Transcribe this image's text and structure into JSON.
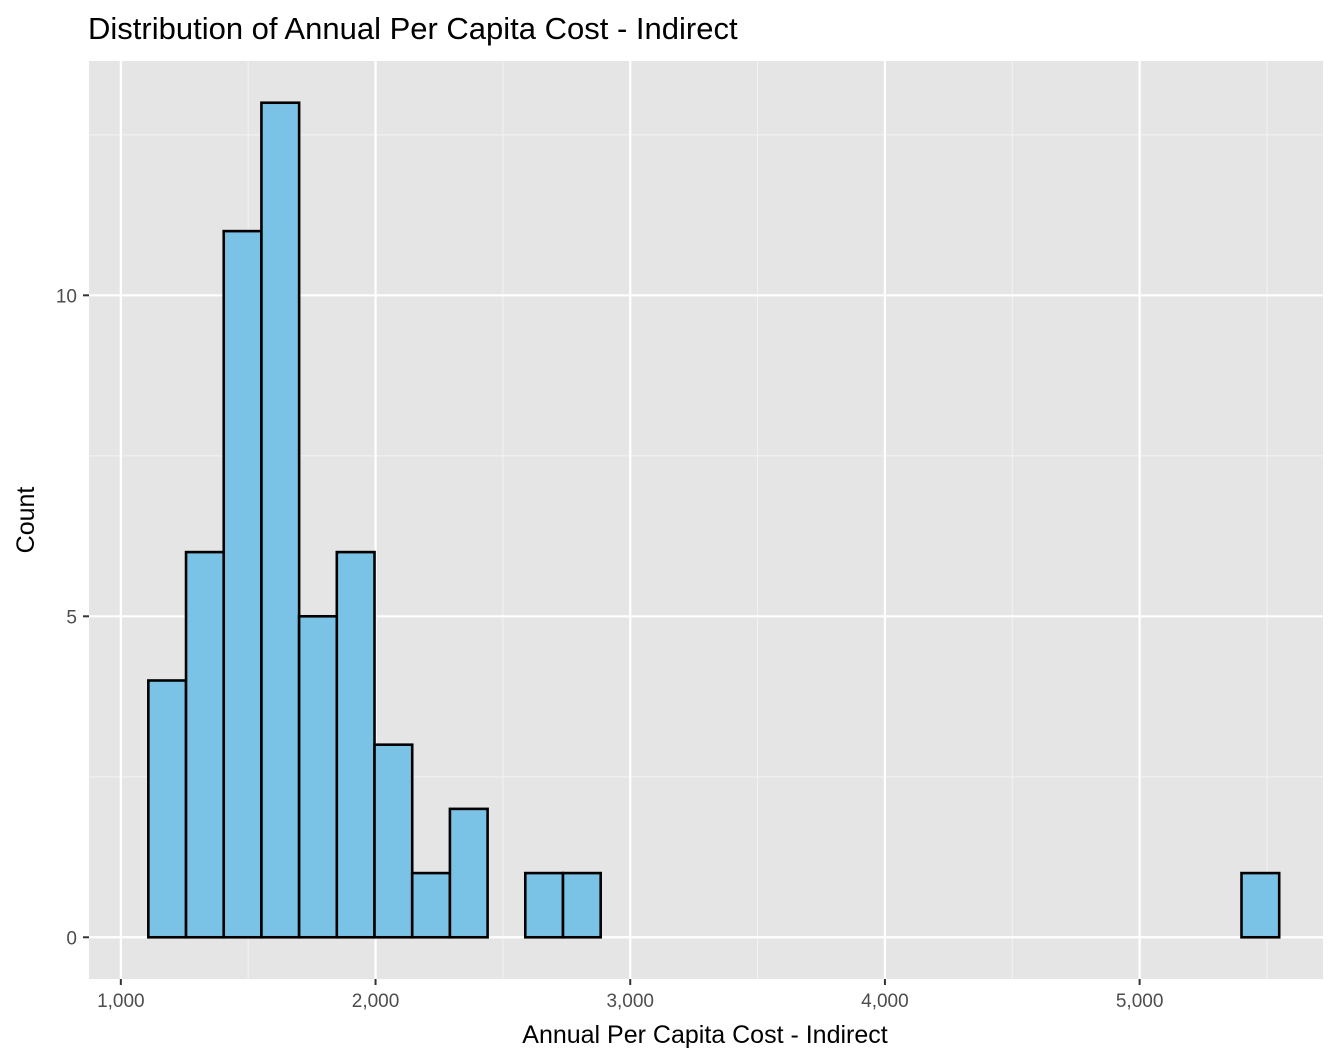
{
  "chart_data": {
    "type": "bar",
    "title": "Distribution of Annual Per Capita Cost - Indirect",
    "xlabel": "Annual Per Capita Cost - Indirect",
    "ylabel": "Count",
    "xlim": [
      875,
      5720
    ],
    "ylim": [
      -0.65,
      13.65
    ],
    "x_ticks": [
      1000,
      2000,
      3000,
      4000,
      5000
    ],
    "x_tick_labels": [
      "1,000",
      "2,000",
      "3,000",
      "4,000",
      "5,000"
    ],
    "y_ticks": [
      0,
      5,
      10
    ],
    "y_tick_labels": [
      "0",
      "5",
      "10"
    ],
    "grid": true,
    "bin_width": 148,
    "bins": [
      {
        "x0": 1108,
        "x1": 1256,
        "count": 4
      },
      {
        "x0": 1256,
        "x1": 1404,
        "count": 6
      },
      {
        "x0": 1404,
        "x1": 1552,
        "count": 11
      },
      {
        "x0": 1552,
        "x1": 1700,
        "count": 13
      },
      {
        "x0": 1700,
        "x1": 1848,
        "count": 5
      },
      {
        "x0": 1848,
        "x1": 1996,
        "count": 6
      },
      {
        "x0": 1996,
        "x1": 2144,
        "count": 3
      },
      {
        "x0": 2144,
        "x1": 2292,
        "count": 1
      },
      {
        "x0": 2292,
        "x1": 2440,
        "count": 2
      },
      {
        "x0": 2440,
        "x1": 2588,
        "count": 0
      },
      {
        "x0": 2588,
        "x1": 2736,
        "count": 1
      },
      {
        "x0": 2736,
        "x1": 2884,
        "count": 1
      },
      {
        "x0": 2884,
        "x1": 3032,
        "count": 0
      },
      {
        "x0": 3032,
        "x1": 3180,
        "count": 0
      },
      {
        "x0": 3180,
        "x1": 3328,
        "count": 0
      },
      {
        "x0": 3328,
        "x1": 3476,
        "count": 0
      },
      {
        "x0": 3476,
        "x1": 3624,
        "count": 0
      },
      {
        "x0": 3624,
        "x1": 3772,
        "count": 0
      },
      {
        "x0": 3772,
        "x1": 3920,
        "count": 0
      },
      {
        "x0": 3920,
        "x1": 4068,
        "count": 0
      },
      {
        "x0": 4068,
        "x1": 4216,
        "count": 0
      },
      {
        "x0": 4216,
        "x1": 4364,
        "count": 0
      },
      {
        "x0": 4364,
        "x1": 4512,
        "count": 0
      },
      {
        "x0": 4512,
        "x1": 4660,
        "count": 0
      },
      {
        "x0": 4660,
        "x1": 4808,
        "count": 0
      },
      {
        "x0": 4808,
        "x1": 4956,
        "count": 0
      },
      {
        "x0": 4956,
        "x1": 5104,
        "count": 0
      },
      {
        "x0": 5104,
        "x1": 5252,
        "count": 0
      },
      {
        "x0": 5252,
        "x1": 5400,
        "count": 0
      },
      {
        "x0": 5400,
        "x1": 5548,
        "count": 1
      }
    ],
    "colors": {
      "bar_fill": "#7bc3e6",
      "bar_stroke": "#000000",
      "panel_background": "#e5e5e5",
      "grid_major": "#ffffff",
      "grid_minor": "#f2f2f2",
      "tick_color": "#333333"
    }
  }
}
